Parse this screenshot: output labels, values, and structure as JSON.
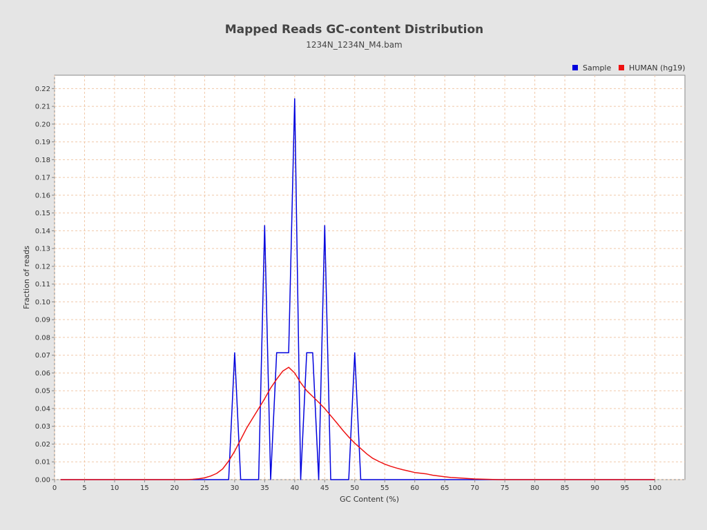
{
  "chart_data": {
    "type": "line",
    "title": "Mapped Reads GC-content Distribution",
    "subtitle": "1234N_1234N_M4.bam",
    "xlabel": "GC Content (%)",
    "ylabel": "Fraction of reads",
    "xlim": [
      0,
      105
    ],
    "ylim": [
      0,
      0.2275
    ],
    "xticks": [
      0,
      5,
      10,
      15,
      20,
      25,
      30,
      35,
      40,
      45,
      50,
      55,
      60,
      65,
      70,
      75,
      80,
      85,
      90,
      95,
      100
    ],
    "yticks": [
      0.0,
      0.01,
      0.02,
      0.03,
      0.04,
      0.05,
      0.06,
      0.07,
      0.08,
      0.09,
      0.1,
      0.11,
      0.12,
      0.13,
      0.14,
      0.15,
      0.16,
      0.17,
      0.18,
      0.19,
      0.2,
      0.21,
      0.22
    ],
    "grid": true,
    "legend_position": "top-right",
    "series": [
      {
        "name": "Sample",
        "color": "#0000dd",
        "x": [
          1,
          29,
          30,
          31,
          34,
          35,
          36,
          37,
          39,
          40,
          41,
          42,
          43,
          44,
          45,
          46,
          49,
          50,
          51,
          100
        ],
        "y": [
          0,
          0,
          0.0714,
          0,
          0,
          0.1429,
          0,
          0.0714,
          0.0714,
          0.2143,
          0,
          0.0714,
          0.0714,
          0,
          0.1429,
          0,
          0,
          0.0714,
          0,
          0
        ]
      },
      {
        "name": "HUMAN (hg19)",
        "color": "#ee1111",
        "x": [
          1,
          22,
          23,
          24,
          25,
          26,
          27,
          28,
          29,
          30,
          31,
          32,
          33,
          34,
          35,
          36,
          37,
          38,
          39,
          40,
          41,
          42,
          43,
          44,
          45,
          46,
          47,
          48,
          49,
          50,
          51,
          52,
          53,
          54,
          55,
          56,
          57,
          58,
          59,
          60,
          61,
          62,
          63,
          64,
          65,
          66,
          67,
          68,
          69,
          70,
          71,
          72,
          73,
          74,
          75,
          100
        ],
        "y": [
          0,
          0,
          0.0002,
          0.0005,
          0.001,
          0.002,
          0.0035,
          0.006,
          0.0105,
          0.016,
          0.0225,
          0.029,
          0.0345,
          0.04,
          0.0455,
          0.0515,
          0.0565,
          0.061,
          0.0632,
          0.06,
          0.0545,
          0.05,
          0.0468,
          0.0435,
          0.04,
          0.036,
          0.032,
          0.0278,
          0.024,
          0.0205,
          0.0175,
          0.0145,
          0.012,
          0.0103,
          0.0087,
          0.0075,
          0.0065,
          0.0056,
          0.0048,
          0.004,
          0.0036,
          0.0032,
          0.0025,
          0.002,
          0.0016,
          0.0012,
          0.001,
          0.0008,
          0.0006,
          0.0004,
          0.0003,
          0.0002,
          0.0001,
          0,
          0,
          0
        ]
      }
    ]
  }
}
